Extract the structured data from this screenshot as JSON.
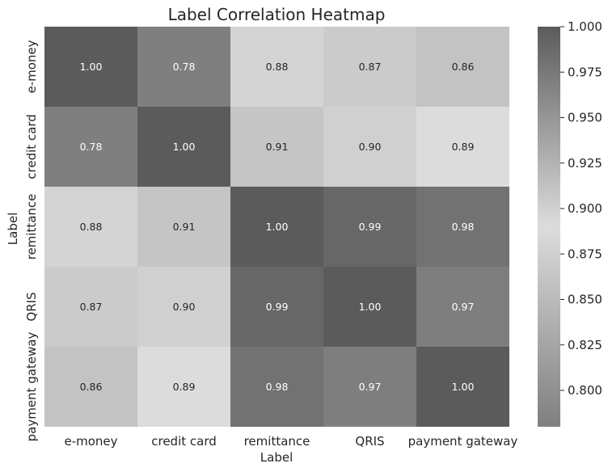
{
  "chart_data": {
    "type": "heatmap",
    "title": "Label Correlation Heatmap",
    "xlabel": "Label",
    "ylabel": "Label",
    "x_categories": [
      "e-money",
      "credit card",
      "remittance",
      "QRIS",
      "payment gateway"
    ],
    "y_categories": [
      "e-money",
      "credit card",
      "remittance",
      "QRIS",
      "payment gateway"
    ],
    "values": [
      [
        1.0,
        0.78,
        0.88,
        0.87,
        0.86
      ],
      [
        0.78,
        1.0,
        0.91,
        0.9,
        0.89
      ],
      [
        0.88,
        0.91,
        1.0,
        0.99,
        0.98
      ],
      [
        0.87,
        0.9,
        0.99,
        1.0,
        0.97
      ],
      [
        0.86,
        0.89,
        0.98,
        0.97,
        1.0
      ]
    ],
    "value_labels": [
      [
        "1.00",
        "0.78",
        "0.88",
        "0.87",
        "0.86"
      ],
      [
        "0.78",
        "1.00",
        "0.91",
        "0.90",
        "0.89"
      ],
      [
        "0.88",
        "0.91",
        "1.00",
        "0.99",
        "0.98"
      ],
      [
        "0.87",
        "0.90",
        "0.99",
        "1.00",
        "0.97"
      ],
      [
        "0.86",
        "0.89",
        "0.98",
        "0.97",
        "1.00"
      ]
    ],
    "colorbar": {
      "range": [
        0.78,
        1.0
      ],
      "ticks": [
        "0.800",
        "0.825",
        "0.850",
        "0.875",
        "0.900",
        "0.925",
        "0.950",
        "0.975",
        "1.000"
      ],
      "colors": [
        "#7f7f7f",
        "#dcdcdc",
        "#5b5b5b"
      ],
      "color_stops": [
        0.0,
        0.5,
        1.0
      ]
    },
    "grid": false
  }
}
